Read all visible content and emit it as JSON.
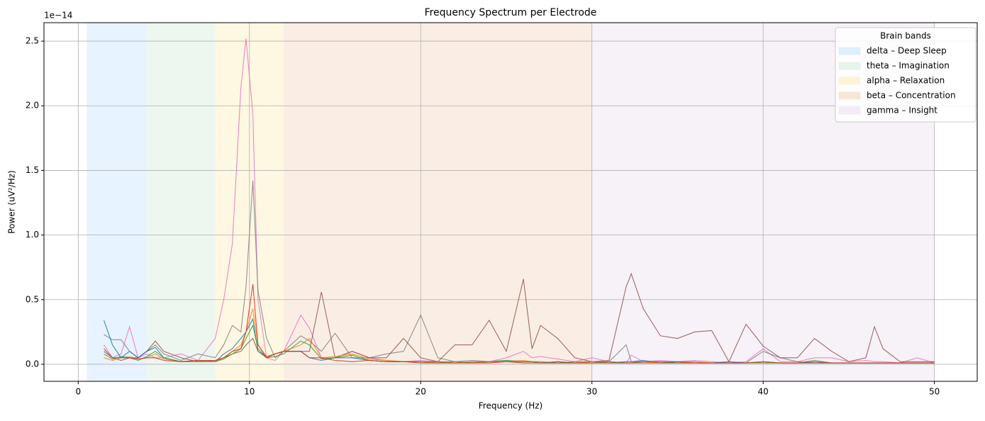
{
  "chart_data": {
    "type": "line",
    "title": "Frequency Spectrum per Electrode",
    "x_label": "Frequency (Hz)",
    "y_label": "Power (uV²/Hz)",
    "y_offset_label": "1e−14",
    "xlim": [
      -2,
      52.5
    ],
    "ylim": [
      -0.132,
      2.643
    ],
    "xticks": [
      0,
      10,
      20,
      30,
      40,
      50
    ],
    "yticks": [
      {
        "value": 0,
        "label": "0.0"
      },
      0.5,
      {
        "value": 1,
        "label": "1.0"
      },
      1.5,
      {
        "value": 2,
        "label": "2.0"
      },
      2.5
    ],
    "grid": true,
    "legend": {
      "title": "Brain bands",
      "position": "upper right"
    },
    "bands": [
      {
        "name": "delta – Deep Sleep",
        "color": "#ddeeff",
        "range": [
          0.5,
          4
        ]
      },
      {
        "name": "theta – Imagination",
        "color": "#e6f4ea",
        "range": [
          4,
          8
        ]
      },
      {
        "name": "alpha – Relaxation",
        "color": "#fdf3d6",
        "range": [
          8,
          12
        ]
      },
      {
        "name": "beta – Concentration",
        "color": "#f8e7d8",
        "range": [
          12,
          30
        ]
      },
      {
        "name": "gamma – Insight",
        "color": "#f3ebf5",
        "range": [
          30,
          50
        ]
      }
    ],
    "x": [
      1.5,
      2,
      2.5,
      3,
      3.5,
      4,
      4.5,
      5,
      6,
      7,
      8,
      8.5,
      9,
      9.5,
      9.8,
      10.2,
      10.5,
      11,
      11.5,
      12,
      13,
      13.5,
      14.2,
      15,
      16,
      17,
      18,
      19,
      20,
      21,
      22,
      23,
      24,
      25,
      26,
      26.5,
      27,
      28,
      29,
      30,
      31,
      32,
      32.3,
      33,
      34,
      35,
      36,
      37,
      38,
      39,
      40,
      41,
      42,
      43,
      44,
      45,
      46,
      46.5,
      47,
      48,
      49,
      50
    ],
    "series": [
      {
        "color": "#e377c2",
        "values": [
          0.15,
          0.05,
          0.08,
          0.29,
          0.05,
          0.08,
          0.05,
          0.05,
          0.08,
          0.03,
          0.2,
          0.5,
          0.93,
          2.14,
          2.52,
          1.93,
          0.5,
          0.05,
          0.03,
          0.1,
          0.38,
          0.28,
          0.05,
          0.05,
          0.1,
          0.05,
          0.03,
          0.02,
          0.03,
          0.02,
          0.02,
          0.01,
          0.02,
          0.05,
          0.1,
          0.05,
          0.06,
          0.04,
          0.02,
          0.05,
          0.02,
          0.01,
          0.07,
          0.02,
          0.03,
          0.02,
          0.03,
          0.02,
          0.01,
          0.02,
          0.12,
          0.02,
          0.02,
          0.05,
          0.05,
          0.02,
          0.03,
          0.02,
          0.02,
          0.01,
          0.05,
          0.01
        ]
      },
      {
        "color": "#7f7f7f",
        "values": [
          0.23,
          0.19,
          0.19,
          0.1,
          0.05,
          0.1,
          0.15,
          0.08,
          0.03,
          0.08,
          0.05,
          0.15,
          0.3,
          0.25,
          0.6,
          1.42,
          0.57,
          0.2,
          0.05,
          0.1,
          0.22,
          0.18,
          0.1,
          0.24,
          0.05,
          0.05,
          0.08,
          0.1,
          0.38,
          0.05,
          0.02,
          0.03,
          0.02,
          0.02,
          0.02,
          0.02,
          0.02,
          0.01,
          0.02,
          0.02,
          0.02,
          0.15,
          0.02,
          0.02,
          0.02,
          0.02,
          0.02,
          0.01,
          0.01,
          0.01,
          0.1,
          0.05,
          0.02,
          0.01,
          0.01,
          0.01,
          0.01,
          0.01,
          0.01,
          0.01,
          0.01,
          0.01
        ]
      },
      {
        "color": "#8c564b",
        "values": [
          0.1,
          0.05,
          0.03,
          0.05,
          0.05,
          0.1,
          0.18,
          0.1,
          0.05,
          0.02,
          0.03,
          0.05,
          0.08,
          0.1,
          0.15,
          0.2,
          0.1,
          0.05,
          0.08,
          0.1,
          0.1,
          0.1,
          0.56,
          0.05,
          0.1,
          0.05,
          0.05,
          0.2,
          0.05,
          0.02,
          0.15,
          0.15,
          0.34,
          0.1,
          0.66,
          0.12,
          0.3,
          0.2,
          0.05,
          0.02,
          0.03,
          0.6,
          0.7,
          0.43,
          0.22,
          0.2,
          0.25,
          0.26,
          0.02,
          0.31,
          0.14,
          0.05,
          0.05,
          0.2,
          0.1,
          0.02,
          0.05,
          0.29,
          0.12,
          0.02,
          0.02,
          0.02
        ]
      },
      {
        "color": "#1f77b4",
        "values": [
          0.34,
          0.15,
          0.05,
          0.1,
          0.05,
          0.1,
          0.13,
          0.05,
          0.02,
          0.03,
          0.02,
          0.08,
          0.12,
          0.2,
          0.25,
          0.35,
          0.1,
          0.06,
          0.08,
          0.1,
          0.1,
          0.05,
          0.03,
          0.05,
          0.05,
          0.03,
          0.02,
          0.02,
          0.02,
          0.01,
          0.02,
          0.01,
          0.02,
          0.03,
          0.02,
          0.02,
          0.01,
          0.02,
          0.01,
          0.02,
          0.01,
          0.02,
          0.02,
          0.03,
          0.01,
          0.02,
          0.01,
          0.01,
          0.02,
          0.01,
          0.02,
          0.01,
          0.01,
          0.02,
          0.01,
          0.01,
          0.01,
          0.01,
          0.01,
          0.01,
          0.01,
          0.01
        ]
      },
      {
        "color": "#ff7f0e",
        "values": [
          0.05,
          0.03,
          0.05,
          0.06,
          0.04,
          0.05,
          0.08,
          0.04,
          0.02,
          0.03,
          0.02,
          0.05,
          0.1,
          0.15,
          0.25,
          0.43,
          0.15,
          0.06,
          0.08,
          0.1,
          0.15,
          0.2,
          0.05,
          0.06,
          0.08,
          0.04,
          0.03,
          0.02,
          0.02,
          0.01,
          0.02,
          0.01,
          0.02,
          0.02,
          0.03,
          0.02,
          0.01,
          0.01,
          0.01,
          0.02,
          0.01,
          0.01,
          0.01,
          0.02,
          0.01,
          0.01,
          0.02,
          0.01,
          0.01,
          0.01,
          0.02,
          0.01,
          0.01,
          0.01,
          0.01,
          0.01,
          0.01,
          0.01,
          0.01,
          0.01,
          0.01,
          0.01
        ]
      },
      {
        "color": "#2ca02c",
        "values": [
          0.08,
          0.04,
          0.06,
          0.05,
          0.03,
          0.06,
          0.1,
          0.05,
          0.02,
          0.02,
          0.02,
          0.04,
          0.08,
          0.12,
          0.2,
          0.3,
          0.12,
          0.05,
          0.06,
          0.08,
          0.18,
          0.15,
          0.04,
          0.05,
          0.07,
          0.03,
          0.02,
          0.02,
          0.02,
          0.02,
          0.01,
          0.02,
          0.02,
          0.03,
          0.02,
          0.02,
          0.01,
          0.02,
          0.01,
          0.01,
          0.02,
          0.01,
          0.01,
          0.02,
          0.02,
          0.01,
          0.01,
          0.01,
          0.01,
          0.01,
          0.02,
          0.01,
          0.01,
          0.03,
          0.01,
          0.01,
          0.01,
          0.01,
          0.01,
          0.01,
          0.01,
          0.01
        ]
      },
      {
        "color": "#d62728",
        "values": [
          0.12,
          0.05,
          0.05,
          0.05,
          0.04,
          0.05,
          0.05,
          0.03,
          0.02,
          0.03,
          0.03,
          0.05,
          0.1,
          0.12,
          0.25,
          0.62,
          0.15,
          0.05,
          0.08,
          0.1,
          0.1,
          0.05,
          0.05,
          0.03,
          0.02,
          0.03,
          0.02,
          0.02,
          0.01,
          0.01,
          0.01,
          0.01,
          0.01,
          0.02,
          0.01,
          0.01,
          0.01,
          0.01,
          0.01,
          0.01,
          0.01,
          0.01,
          0.01,
          0.01,
          0.01,
          0.01,
          0.01,
          0.01,
          0.01,
          0.01,
          0.01,
          0.01,
          0.01,
          0.01,
          0.01,
          0.01,
          0.01,
          0.01,
          0.01,
          0.01,
          0.01,
          0.01
        ]
      }
    ]
  }
}
